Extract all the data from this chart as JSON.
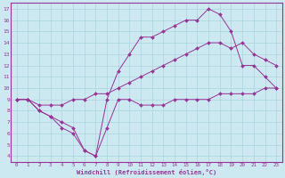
{
  "bg_color": "#cce8f0",
  "line_color": "#993399",
  "grid_color": "#aad4e0",
  "xlabel": "Windchill (Refroidissement éolien,°C)",
  "xlim": [
    -0.5,
    23.5
  ],
  "ylim": [
    3.5,
    17.5
  ],
  "xticks": [
    0,
    1,
    2,
    3,
    4,
    5,
    6,
    7,
    8,
    9,
    10,
    11,
    12,
    13,
    14,
    15,
    16,
    17,
    18,
    19,
    20,
    21,
    22,
    23
  ],
  "yticks": [
    4,
    5,
    6,
    7,
    8,
    9,
    10,
    11,
    12,
    13,
    14,
    15,
    16,
    17
  ],
  "line1_x": [
    0,
    1,
    2,
    3,
    4,
    5,
    6,
    7,
    8,
    9,
    10,
    11,
    12,
    13,
    14,
    15,
    16,
    17,
    18,
    19,
    20,
    21,
    22,
    23
  ],
  "line1_y": [
    9.0,
    9.0,
    8.0,
    7.5,
    6.5,
    6.0,
    4.5,
    4.0,
    6.5,
    9.0,
    9.0,
    8.5,
    8.5,
    8.5,
    9.0,
    9.0,
    9.0,
    9.0,
    9.5,
    9.5,
    9.5,
    9.5,
    10.0,
    10.0
  ],
  "line2_x": [
    0,
    1,
    2,
    3,
    4,
    5,
    6,
    7,
    8,
    9,
    10,
    11,
    12,
    13,
    14,
    15,
    16,
    17,
    18,
    19,
    20,
    21,
    22,
    23
  ],
  "line2_y": [
    9.0,
    9.0,
    8.5,
    8.5,
    8.5,
    9.0,
    9.0,
    9.5,
    9.5,
    10.0,
    10.5,
    11.0,
    11.5,
    12.0,
    12.5,
    13.0,
    13.5,
    14.0,
    14.0,
    13.5,
    14.0,
    13.0,
    12.5,
    12.0
  ],
  "line3_x": [
    0,
    1,
    2,
    3,
    4,
    5,
    6,
    7,
    8,
    9,
    10,
    11,
    12,
    13,
    14,
    15,
    16,
    17,
    18,
    19,
    20,
    21,
    22,
    23
  ],
  "line3_y": [
    9.0,
    9.0,
    8.0,
    7.5,
    7.0,
    6.5,
    4.5,
    4.0,
    9.0,
    11.5,
    13.0,
    14.5,
    14.5,
    15.0,
    15.5,
    16.0,
    16.0,
    17.0,
    16.5,
    15.0,
    12.0,
    12.0,
    11.0,
    10.0
  ]
}
